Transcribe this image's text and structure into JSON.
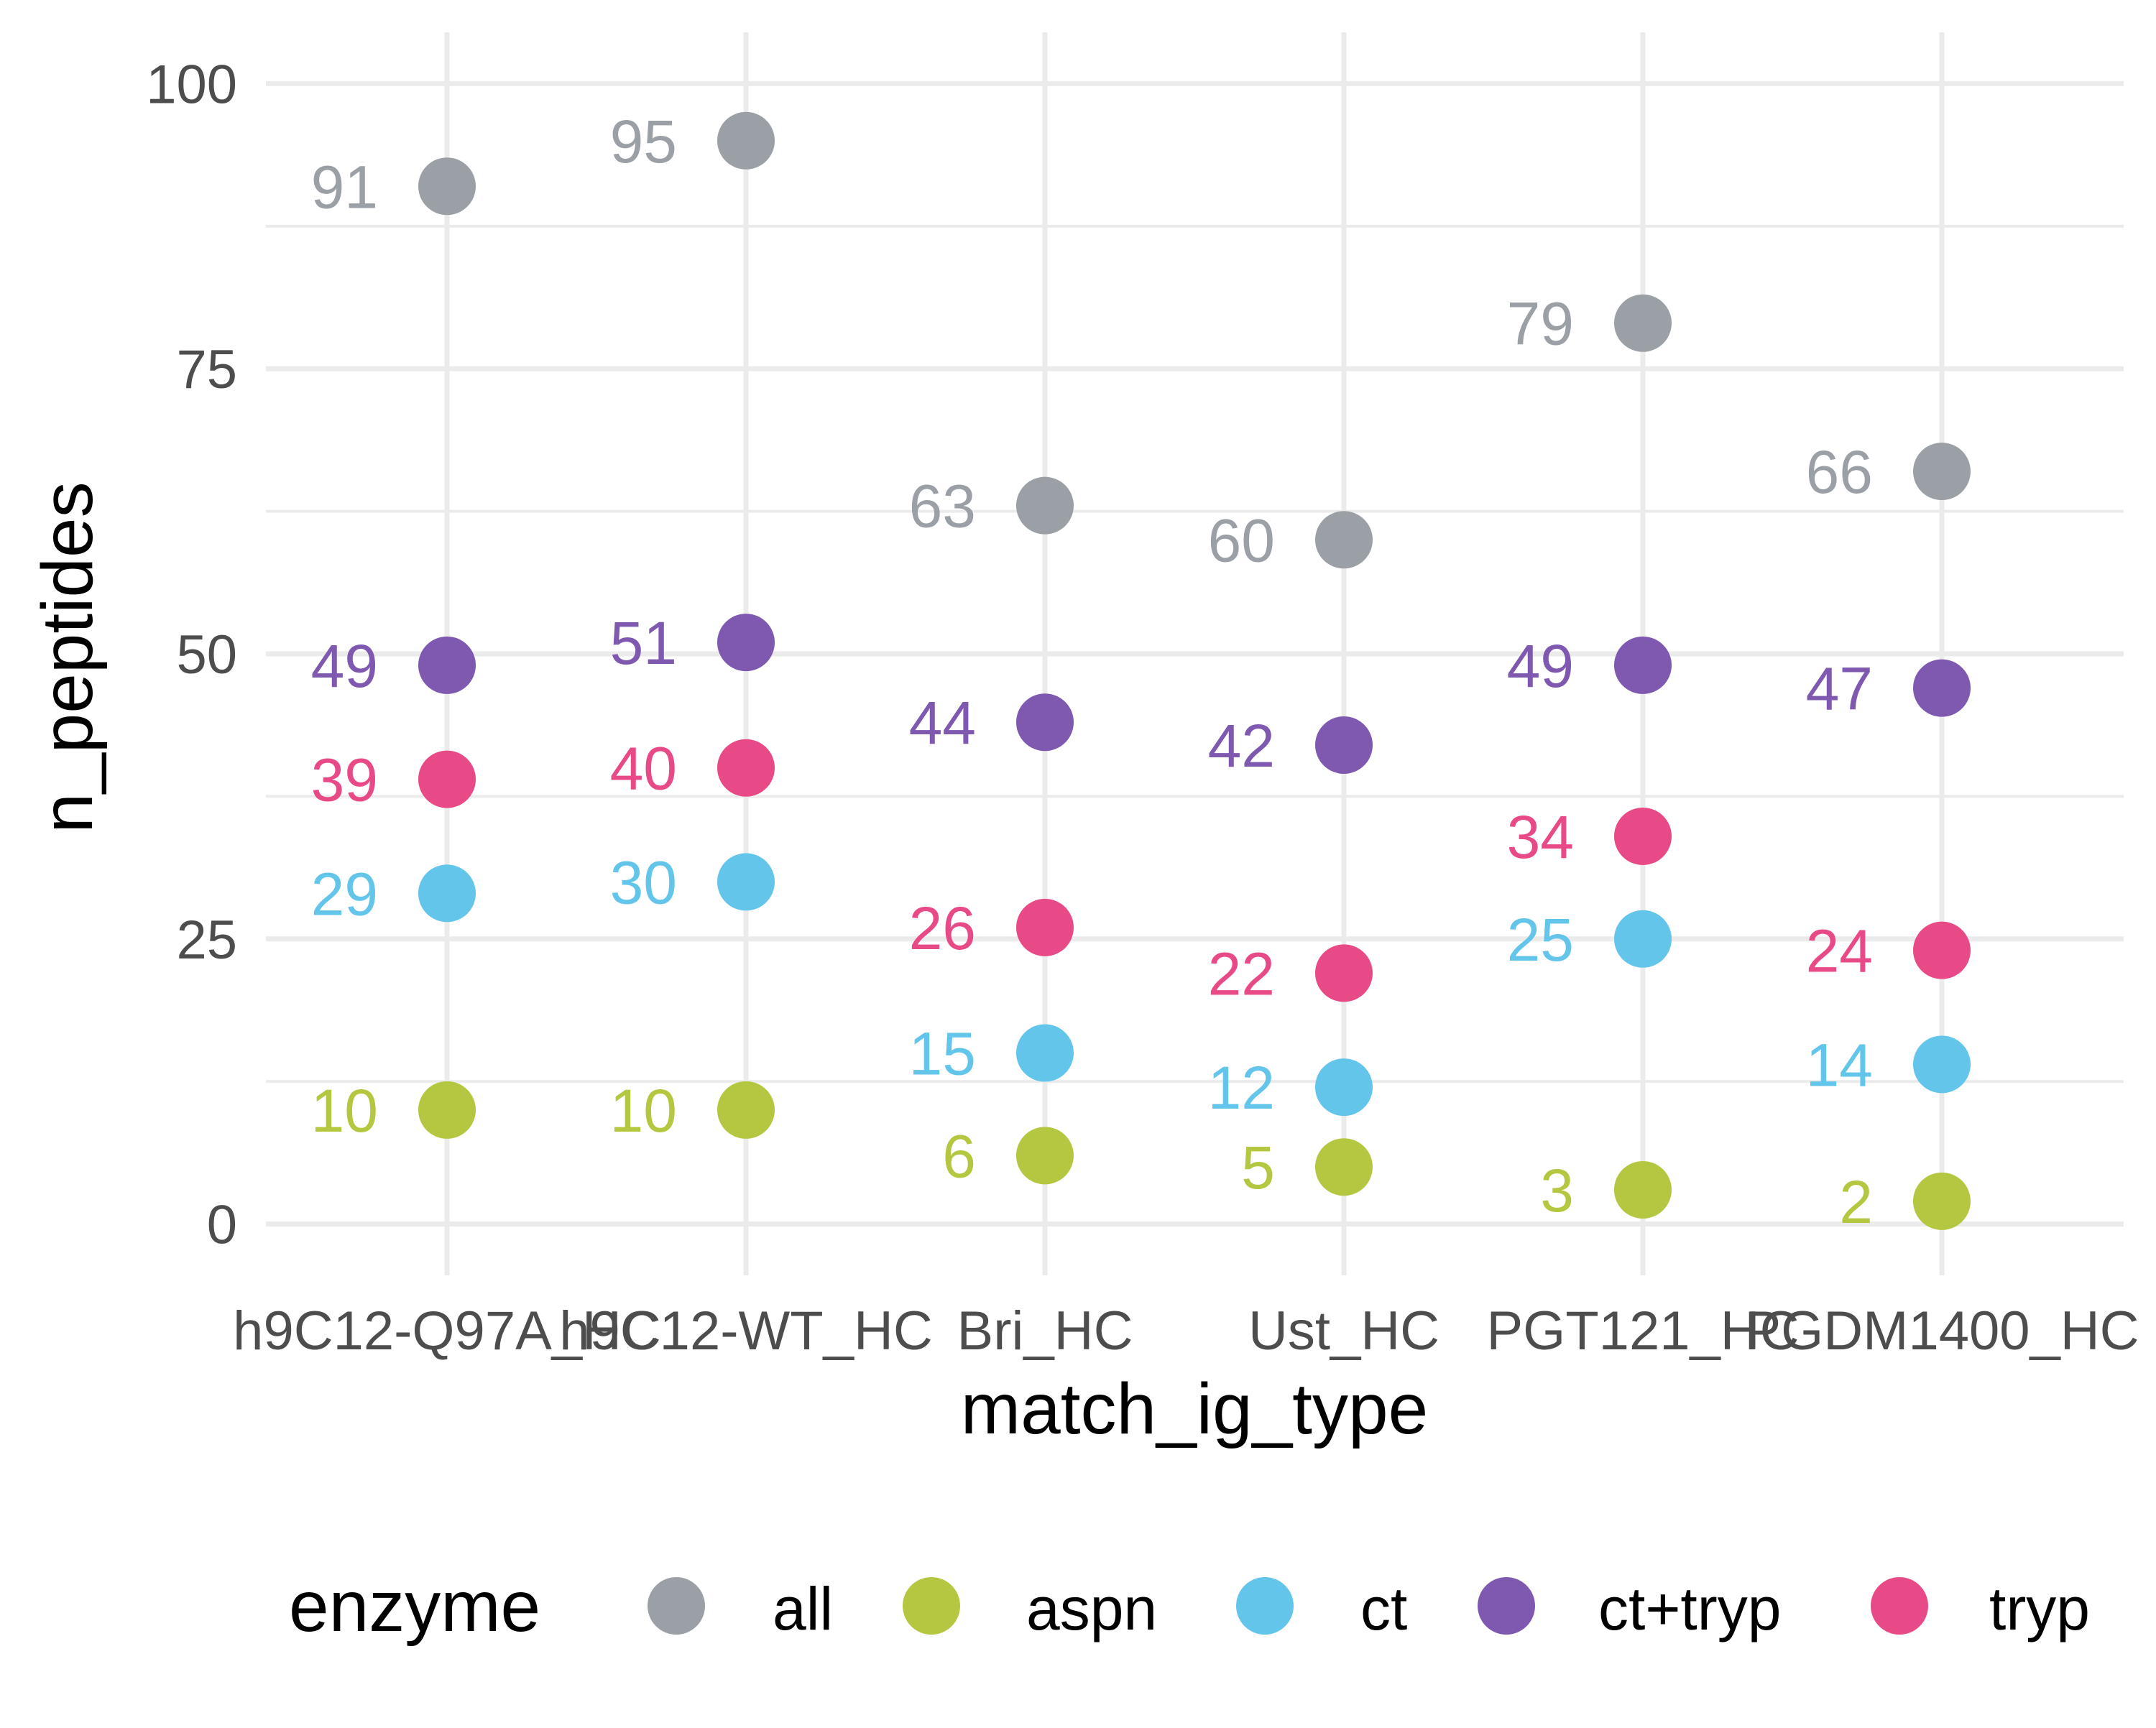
{
  "chart_data": {
    "type": "scatter",
    "xlabel": "match_ig_type",
    "ylabel": "n_peptides",
    "categories": [
      "h9C12-Q97A_HC",
      "h9C12-WT_HC",
      "Bri_HC",
      "Ust_HC",
      "PGT121_HC",
      "PGDM1400_HC"
    ],
    "ylim": [
      -4.5,
      104.5
    ],
    "y_ticks": [
      "0",
      "25",
      "50",
      "75",
      "100"
    ],
    "grid": true,
    "legend": {
      "title": "enzyme",
      "position": "bottom",
      "entries": [
        "all",
        "aspn",
        "ct",
        "ct+tryp",
        "tryp"
      ]
    },
    "series": [
      {
        "name": "all",
        "color": "#9aa0a6",
        "values": [
          91,
          95,
          63,
          60,
          79,
          66
        ]
      },
      {
        "name": "aspn",
        "color": "#b5c740",
        "values": [
          10,
          10,
          6,
          5,
          3,
          2
        ]
      },
      {
        "name": "ct",
        "color": "#63c5e9",
        "values": [
          29,
          30,
          15,
          12,
          25,
          14
        ]
      },
      {
        "name": "ct+tryp",
        "color": "#7f59b0",
        "values": [
          49,
          51,
          44,
          42,
          49,
          47
        ]
      },
      {
        "name": "tryp",
        "color": "#e84a88",
        "values": [
          39,
          40,
          26,
          22,
          34,
          24
        ]
      }
    ]
  }
}
